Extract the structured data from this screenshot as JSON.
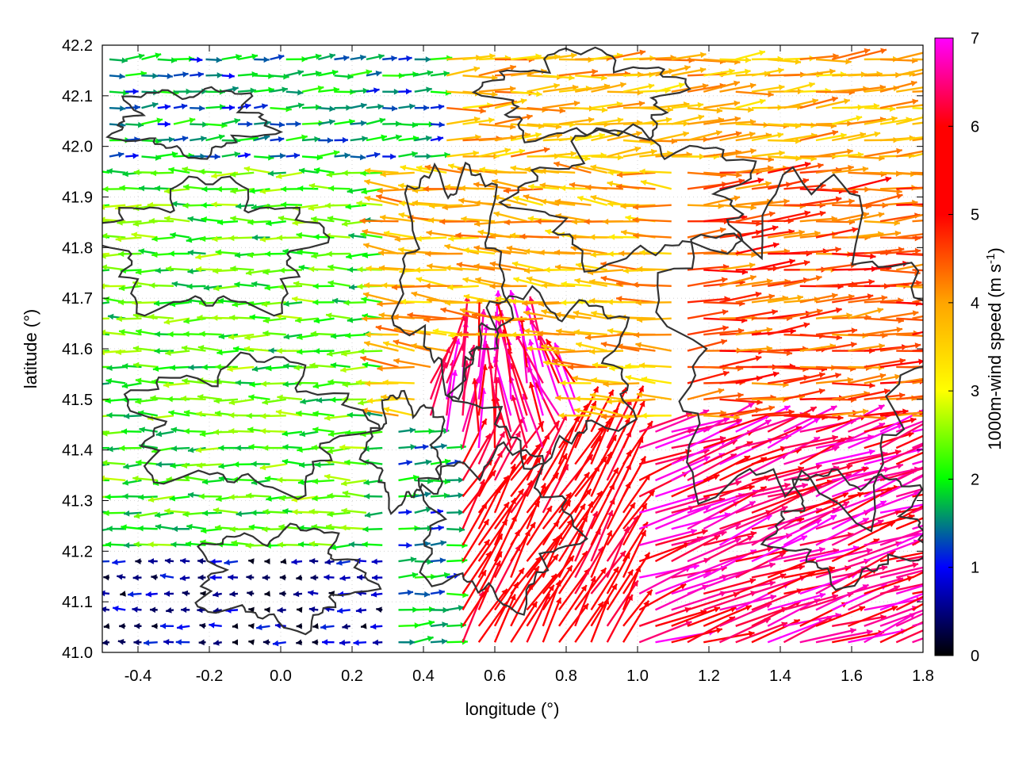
{
  "chart_data": {
    "type": "vector-field",
    "xlabel": "longitude (°)",
    "ylabel": "latitude (°)",
    "xlim": [
      -0.5,
      1.8
    ],
    "ylim": [
      41.0,
      42.2
    ],
    "xticks": [
      "-0.4",
      "-0.2",
      "0.0",
      "0.2",
      "0.4",
      "0.6",
      "0.8",
      "1.0",
      "1.2",
      "1.4",
      "1.6",
      "1.8"
    ],
    "xtick_values": [
      -0.4,
      -0.2,
      0.0,
      0.2,
      0.4,
      0.6,
      0.8,
      1.0,
      1.2,
      1.4,
      1.6,
      1.8
    ],
    "yticks": [
      "41.0",
      "41.1",
      "41.2",
      "41.3",
      "41.4",
      "41.5",
      "41.6",
      "41.7",
      "41.8",
      "41.9",
      "42.0",
      "42.1",
      "42.2"
    ],
    "ytick_values": [
      41.0,
      41.1,
      41.2,
      41.3,
      41.4,
      41.5,
      41.6,
      41.7,
      41.8,
      41.9,
      42.0,
      42.1,
      42.2
    ],
    "grid": true,
    "colorbar": {
      "label_main": "1000m-wind speed (m s",
      "label_sup": "-1",
      "label_close": ")",
      "range": [
        0,
        7
      ],
      "ticks": [
        "0",
        "1",
        "2",
        "3",
        "4",
        "5",
        "6",
        "7"
      ],
      "tick_values": [
        0,
        1,
        2,
        3,
        4,
        5,
        6,
        7
      ],
      "palette": [
        "#000000",
        "#0000ff",
        "#00ff00",
        "#ffff00",
        "#ffa500",
        "#ff0000",
        "#ff00ff"
      ]
    },
    "contour_color": "#333333",
    "regions": [
      {
        "desc": "northwest slow westerly",
        "lon": [
          -0.5,
          0.45
        ],
        "lat": [
          41.95,
          42.2
        ],
        "speed": 1.6,
        "dir_deg": 5
      },
      {
        "desc": "north fast westerly",
        "lon": [
          0.45,
          1.8
        ],
        "lat": [
          41.95,
          42.2
        ],
        "speed": 3.8,
        "dir_deg": 5
      },
      {
        "desc": "west easterly",
        "lon": [
          -0.5,
          0.3
        ],
        "lat": [
          41.2,
          41.95
        ],
        "speed": 2.2,
        "dir_deg": 180
      },
      {
        "desc": "central easterly",
        "lon": [
          0.3,
          1.1
        ],
        "lat": [
          41.45,
          41.95
        ],
        "speed": 3.8,
        "dir_deg": 175
      },
      {
        "desc": "east westerly",
        "lon": [
          1.1,
          1.8
        ],
        "lat": [
          41.45,
          41.95
        ],
        "speed": 4.5,
        "dir_deg": 5
      },
      {
        "desc": "southeast strong southwesterly",
        "lon": [
          1.0,
          1.8
        ],
        "lat": [
          41.0,
          41.45
        ],
        "speed": 6.5,
        "dir_deg": 20
      },
      {
        "desc": "south-central northeasterly",
        "lon": [
          0.5,
          1.0
        ],
        "lat": [
          41.0,
          41.45
        ],
        "speed": 5.8,
        "dir_deg": 60
      },
      {
        "desc": "southwest calm",
        "lon": [
          -0.5,
          0.3
        ],
        "lat": [
          41.0,
          41.2
        ],
        "speed": 0.6,
        "dir_deg": 180
      }
    ]
  }
}
